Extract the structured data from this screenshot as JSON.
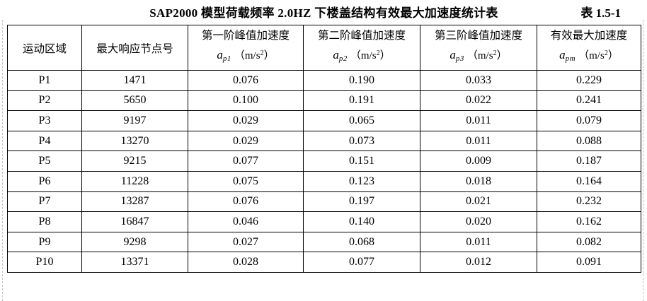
{
  "page": {
    "title": "SAP2000 模型荷载频率 2.0HZ 下楼盖结构有效最大加速度统计表",
    "table_label": "表 1.5-1"
  },
  "table": {
    "columns": [
      {
        "label": "运动区域"
      },
      {
        "label": "最大响应节点号"
      },
      {
        "label": "第一阶峰值加速度",
        "sym": "a",
        "sub": "p1",
        "unit_open": "（m/s",
        "unit_sup": "2",
        "unit_close": "）"
      },
      {
        "label": "第二阶峰值加速度",
        "sym": "a",
        "sub": "p2",
        "unit_open": "（m/s",
        "unit_sup": "2",
        "unit_close": "）"
      },
      {
        "label": "第三阶峰值加速度",
        "sym": "a",
        "sub": "p3",
        "unit_open": "（m/s",
        "unit_sup": "2",
        "unit_close": "）"
      },
      {
        "label": "有效最大加速度",
        "sym": "a",
        "sub": "pm",
        "unit_open": "（m/s",
        "unit_sup": "2",
        "unit_close": "）"
      }
    ],
    "rows": [
      [
        "P1",
        "1471",
        "0.076",
        "0.190",
        "0.033",
        "0.229"
      ],
      [
        "P2",
        "5650",
        "0.100",
        "0.191",
        "0.022",
        "0.241"
      ],
      [
        "P3",
        "9197",
        "0.029",
        "0.065",
        "0.011",
        "0.079"
      ],
      [
        "P4",
        "13270",
        "0.029",
        "0.073",
        "0.011",
        "0.088"
      ],
      [
        "P5",
        "9215",
        "0.077",
        "0.151",
        "0.009",
        "0.187"
      ],
      [
        "P6",
        "11228",
        "0.075",
        "0.123",
        "0.018",
        "0.164"
      ],
      [
        "P7",
        "13287",
        "0.076",
        "0.197",
        "0.021",
        "0.232"
      ],
      [
        "P8",
        "16847",
        "0.046",
        "0.140",
        "0.020",
        "0.162"
      ],
      [
        "P9",
        "9298",
        "0.027",
        "0.068",
        "0.011",
        "0.082"
      ],
      [
        "P10",
        "13371",
        "0.028",
        "0.077",
        "0.012",
        "0.091"
      ]
    ]
  }
}
